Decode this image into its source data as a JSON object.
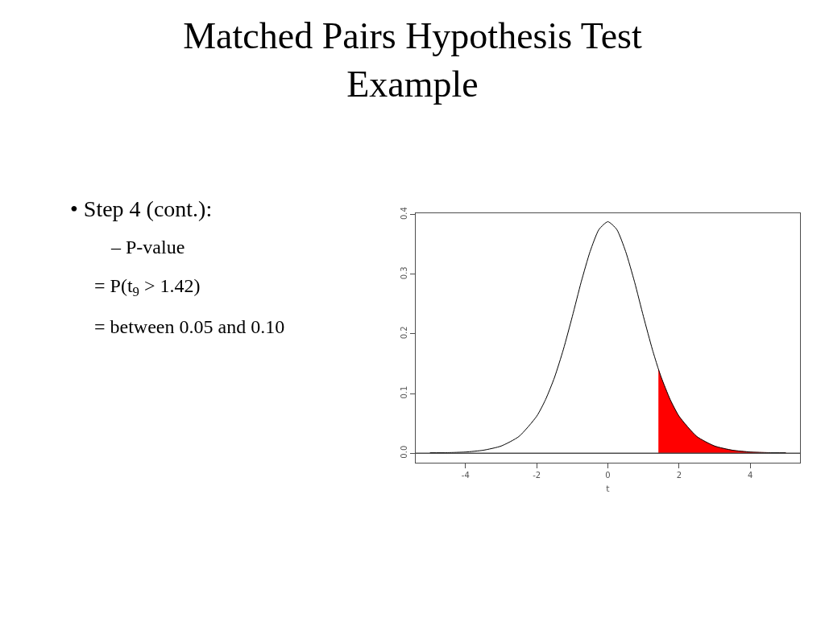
{
  "chart_data": {
    "type": "line",
    "title": "Matched Pairs Hypothesis Test\nExample",
    "xlabel": "t",
    "annotations": [
      "• Step 4 (cont.):",
      "– P-value",
      "= P(t$_{9}$ > 1.42)",
      "= between 0.05 and 0.10"
    ],
    "series": [
      {
        "type": "area",
        "color": "#ff0000",
        "x": [
          1.42,
          1.5,
          1.75,
          2,
          2.5,
          3,
          3.5,
          4,
          4.5,
          5
        ],
        "values": [
          0.141,
          0.127,
          0.09,
          0.062,
          0.028,
          0.012,
          0.005,
          0.002,
          0.001,
          0.001
        ]
      },
      {
        "color": "#000000",
        "x": [
          -5,
          -4.5,
          -4,
          -3.5,
          -3,
          -2.5,
          -2,
          -1.75,
          -1.5,
          -1.25,
          -1,
          -0.75,
          -0.5,
          -0.25,
          0,
          0.25,
          0.5,
          0.75,
          1,
          1.25,
          1.42,
          1.5,
          1.75,
          2,
          2.5,
          3,
          3.5,
          4,
          4.5,
          5
        ],
        "values": [
          0.001,
          0.001,
          0.002,
          0.005,
          0.012,
          0.028,
          0.062,
          0.09,
          0.127,
          0.174,
          0.229,
          0.287,
          0.338,
          0.375,
          0.388,
          0.375,
          0.338,
          0.287,
          0.229,
          0.174,
          0.141,
          0.127,
          0.09,
          0.062,
          0.028,
          0.012,
          0.005,
          0.002,
          0.001,
          0.001
        ]
      }
    ],
    "xlim": [
      -5.4,
      5.4
    ],
    "xticks": [
      -4,
      -2,
      0,
      2,
      4
    ],
    "ylim": [
      -0.0156,
      0.4027
    ],
    "yticks": [
      {
        "value": 0,
        "label": "0.0"
      },
      0.1,
      0.2,
      0.3,
      0.4
    ],
    "ref_lines": [
      {
        "axis": "y",
        "value": 0,
        "color": "#4d4d4d"
      }
    ],
    "marker": "none",
    "line_style": "solid"
  }
}
